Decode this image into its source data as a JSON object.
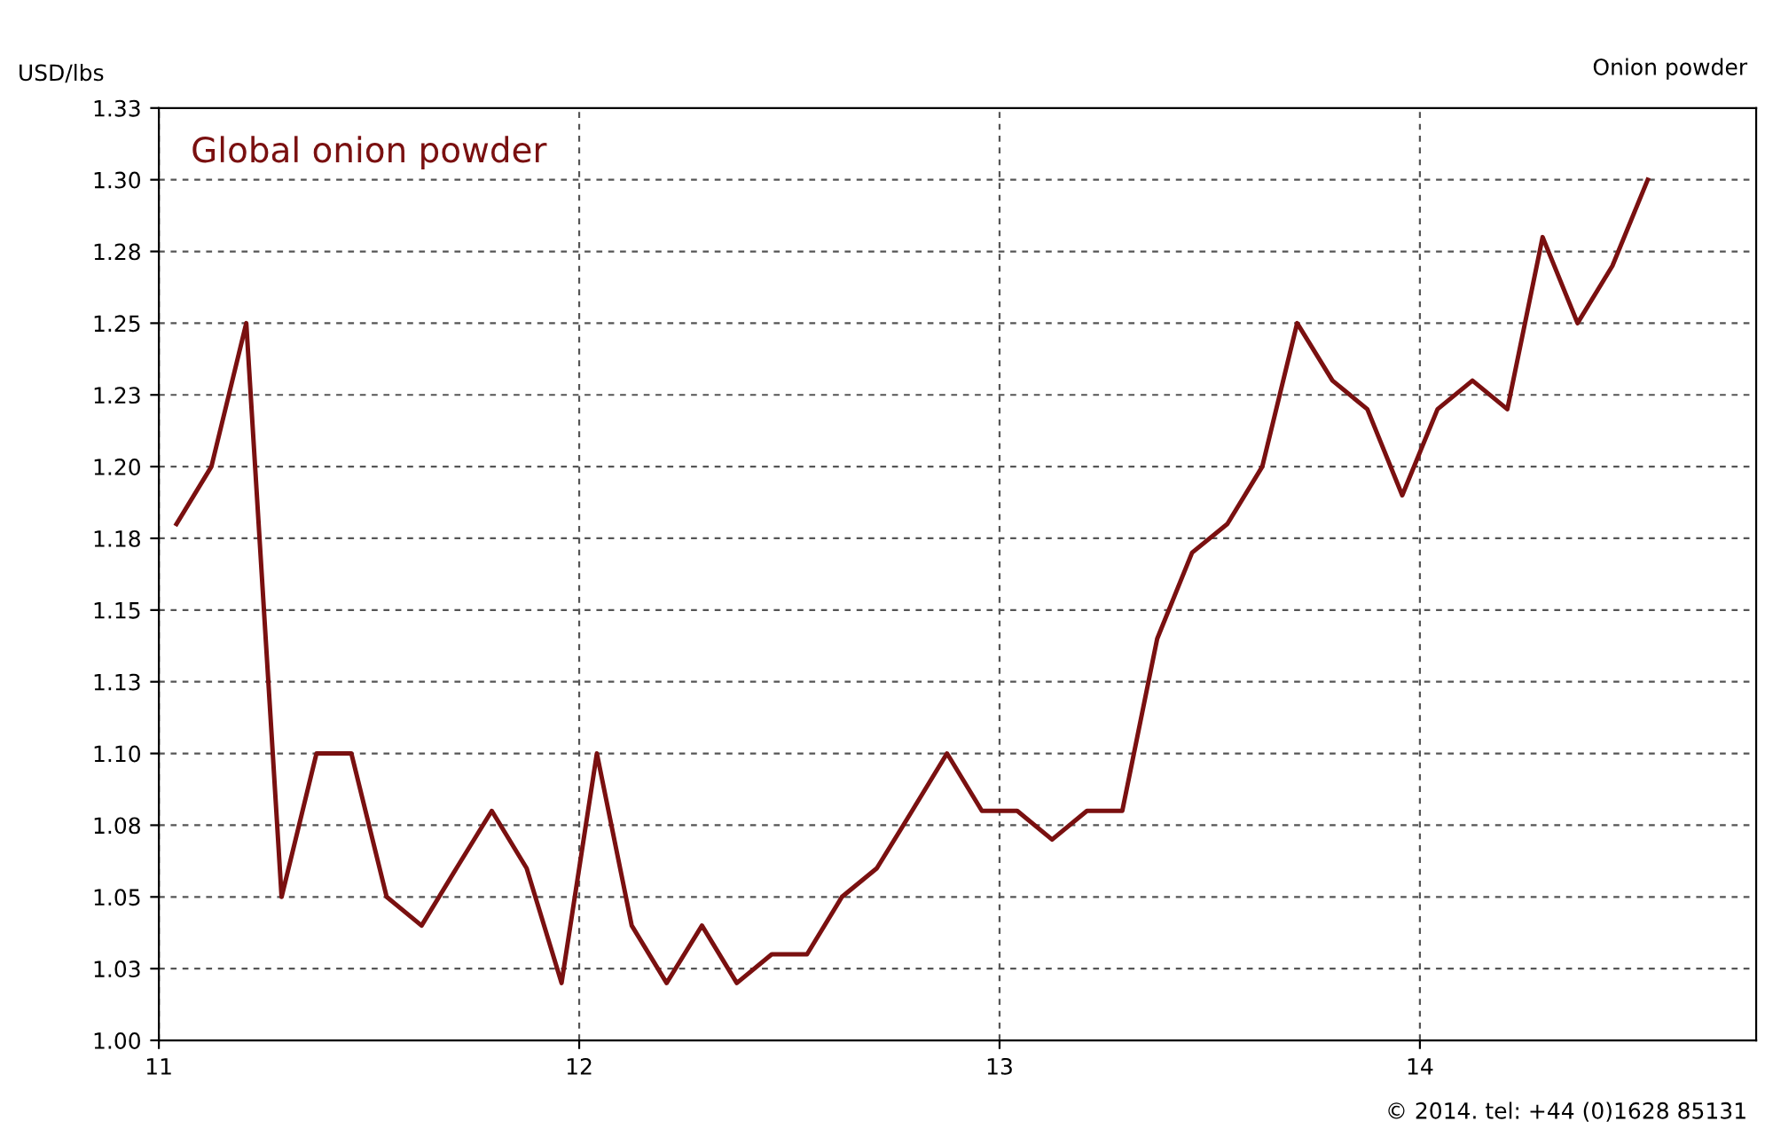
{
  "chart_data": {
    "type": "line",
    "subtitle": "Onion powder",
    "ylabel": "USD/lbs",
    "annotations": [
      "Global onion powder",
      "© 2014. tel: +44 (0)1628 85131"
    ],
    "x": [
      11.042,
      11.125,
      11.208,
      11.292,
      11.375,
      11.458,
      11.542,
      11.625,
      11.708,
      11.792,
      11.875,
      11.958,
      12.042,
      12.125,
      12.208,
      12.292,
      12.375,
      12.458,
      12.542,
      12.625,
      12.708,
      12.792,
      12.875,
      12.958,
      13.042,
      13.125,
      13.208,
      13.292,
      13.375,
      13.458,
      13.542,
      13.625,
      13.708,
      13.792,
      13.875,
      13.958,
      14.042,
      14.125,
      14.208,
      14.292,
      14.375,
      14.458,
      14.542
    ],
    "series": [
      {
        "color": "#7a1010",
        "values": [
          1.18,
          1.2,
          1.25,
          1.05,
          1.1,
          1.1,
          1.05,
          1.04,
          1.06,
          1.08,
          1.06,
          1.02,
          1.1,
          1.04,
          1.02,
          1.04,
          1.02,
          1.03,
          1.03,
          1.05,
          1.06,
          1.08,
          1.1,
          1.08,
          1.08,
          1.07,
          1.08,
          1.08,
          1.14,
          1.17,
          1.18,
          1.2,
          1.25,
          1.23,
          1.22,
          1.19,
          1.22,
          1.23,
          1.22,
          1.28,
          1.25,
          1.27,
          1.3
        ]
      }
    ],
    "xlim": [
      11,
      14.8
    ],
    "ylim": [
      1.0,
      1.325
    ],
    "xticks": [
      11,
      12,
      13,
      14
    ],
    "yticks": [
      {
        "value": 1.0,
        "label": "1.00"
      },
      {
        "value": 1.025,
        "label": "1.03"
      },
      {
        "value": 1.05,
        "label": "1.05"
      },
      {
        "value": 1.075,
        "label": "1.08"
      },
      {
        "value": 1.1,
        "label": "1.10"
      },
      {
        "value": 1.125,
        "label": "1.13"
      },
      {
        "value": 1.15,
        "label": "1.15"
      },
      {
        "value": 1.175,
        "label": "1.18"
      },
      {
        "value": 1.2,
        "label": "1.20"
      },
      {
        "value": 1.225,
        "label": "1.23"
      },
      {
        "value": 1.25,
        "label": "1.25"
      },
      {
        "value": 1.275,
        "label": "1.28"
      },
      {
        "value": 1.3,
        "label": "1.30"
      },
      {
        "value": 1.325,
        "label": "1.33"
      }
    ],
    "grid": true,
    "legend": false,
    "line_style": "solid",
    "marker": "none"
  }
}
